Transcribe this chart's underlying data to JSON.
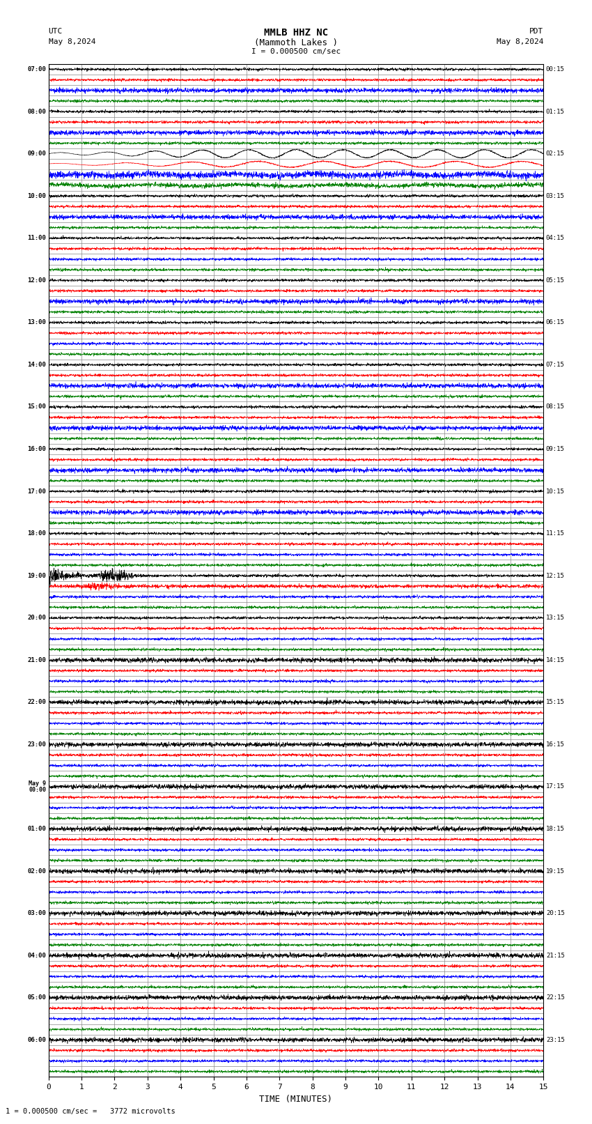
{
  "title_line1": "MMLB HHZ NC",
  "title_line2": "(Mammoth Lakes )",
  "scale_text": "I = 0.000500 cm/sec",
  "footer_text": "1 = 0.000500 cm/sec =   3772 microvolts",
  "utc_label": "UTC",
  "utc_date": "May 8,2024",
  "pdt_label": "PDT",
  "pdt_date": "May 8,2024",
  "xlabel": "TIME (MINUTES)",
  "xlim": [
    0,
    15
  ],
  "xticks": [
    0,
    1,
    2,
    3,
    4,
    5,
    6,
    7,
    8,
    9,
    10,
    11,
    12,
    13,
    14,
    15
  ],
  "left_times": [
    "07:00",
    "",
    "",
    "",
    "08:00",
    "",
    "",
    "",
    "09:00",
    "",
    "",
    "",
    "10:00",
    "",
    "",
    "",
    "11:00",
    "",
    "",
    "",
    "12:00",
    "",
    "",
    "",
    "13:00",
    "",
    "",
    "",
    "14:00",
    "",
    "",
    "",
    "15:00",
    "",
    "",
    "",
    "16:00",
    "",
    "",
    "",
    "17:00",
    "",
    "",
    "",
    "18:00",
    "",
    "",
    "",
    "19:00",
    "",
    "",
    "",
    "20:00",
    "",
    "",
    "",
    "21:00",
    "",
    "",
    "",
    "22:00",
    "",
    "",
    "",
    "23:00",
    "",
    "",
    "",
    "May 9\n00:00",
    "",
    "",
    "",
    "01:00",
    "",
    "",
    "",
    "02:00",
    "",
    "",
    "",
    "03:00",
    "",
    "",
    "",
    "04:00",
    "",
    "",
    "",
    "05:00",
    "",
    "",
    "",
    "06:00",
    "",
    "",
    ""
  ],
  "right_times": [
    "00:15",
    "",
    "",
    "",
    "01:15",
    "",
    "",
    "",
    "02:15",
    "",
    "",
    "",
    "03:15",
    "",
    "",
    "",
    "04:15",
    "",
    "",
    "",
    "05:15",
    "",
    "",
    "",
    "06:15",
    "",
    "",
    "",
    "07:15",
    "",
    "",
    "",
    "08:15",
    "",
    "",
    "",
    "09:15",
    "",
    "",
    "",
    "10:15",
    "",
    "",
    "",
    "11:15",
    "",
    "",
    "",
    "12:15",
    "",
    "",
    "",
    "13:15",
    "",
    "",
    "",
    "14:15",
    "",
    "",
    "",
    "15:15",
    "",
    "",
    "",
    "16:15",
    "",
    "",
    "",
    "17:15",
    "",
    "",
    "",
    "18:15",
    "",
    "",
    "",
    "19:15",
    "",
    "",
    "",
    "20:15",
    "",
    "",
    "",
    "21:15",
    "",
    "",
    "",
    "22:15",
    "",
    "",
    "",
    "23:15",
    "",
    "",
    ""
  ],
  "trace_colors": [
    "black",
    "red",
    "blue",
    "green"
  ],
  "bg_color": "#ffffff",
  "grid_color": "#888888",
  "n_rows": 96,
  "seed": 12345
}
